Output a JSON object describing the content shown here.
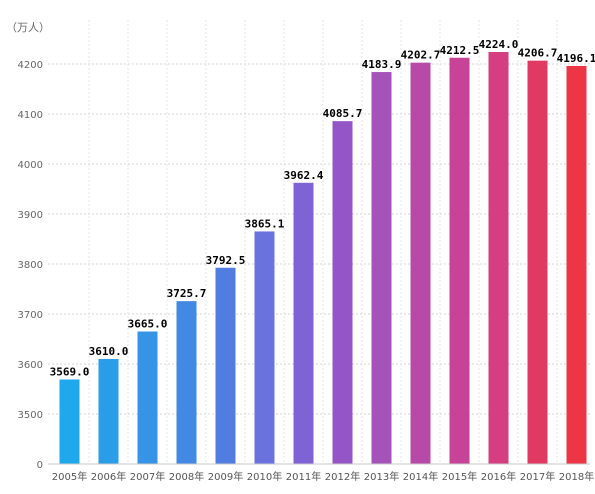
{
  "chart_data": {
    "type": "bar",
    "unit_label": "（万人）",
    "categories": [
      "2005年",
      "2006年",
      "2007年",
      "2008年",
      "2009年",
      "2010年",
      "2011年",
      "2012年",
      "2013年",
      "2014年",
      "2015年",
      "2016年",
      "2017年",
      "2018年"
    ],
    "values": [
      3569.0,
      3610.0,
      3665.0,
      3725.7,
      3792.5,
      3865.1,
      3962.4,
      4085.7,
      4183.9,
      4202.7,
      4212.5,
      4224.0,
      4206.7,
      4196.1
    ],
    "value_labels": [
      "3569.0",
      "3610.0",
      "3665.0",
      "3725.7",
      "3792.5",
      "3865.1",
      "3962.4",
      "4085.7",
      "4183.9",
      "4202.7",
      "4212.5",
      "4224.0",
      "4206.7",
      "4196.1"
    ],
    "y_ticks": [
      "0",
      "3500",
      "3600",
      "3700",
      "3800",
      "3900",
      "4000",
      "4100",
      "4200"
    ],
    "ylim": [
      3500,
      4200
    ],
    "axis_break": true,
    "grid": true,
    "colors": [
      "#1fa8ec",
      "#2a9de9",
      "#3594e6",
      "#4289e3",
      "#527de0",
      "#6a72de",
      "#7f62d6",
      "#9456c6",
      "#a453b8",
      "#b74aa6",
      "#c64398",
      "#d63e82",
      "#e13a62",
      "#ec3545"
    ]
  }
}
